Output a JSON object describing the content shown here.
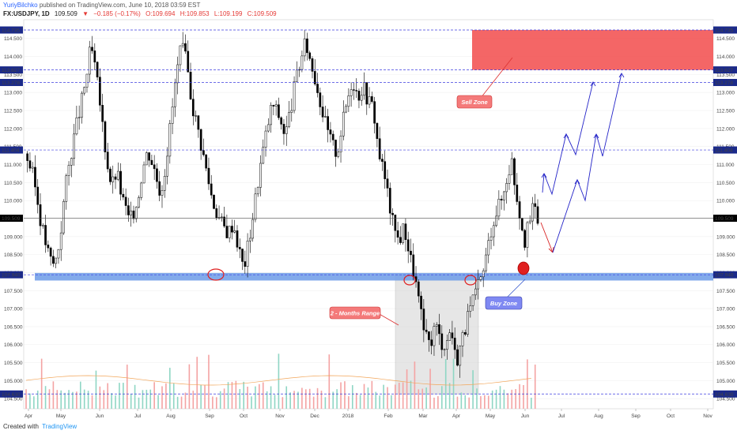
{
  "header": {
    "author": "YuriyBilchko",
    "published": "published on TradingView.com, June 10, 2018 03:59 EST",
    "symbol": "FX:USDJPY, 1D",
    "last": "109.509",
    "change_arrow": "▼",
    "change": "−0.185 (−0.17%)",
    "open": "O:109.694",
    "high": "H:109.853",
    "low": "L:109.199",
    "close": "C:109.509"
  },
  "footer": {
    "created_with": "Created with",
    "brand": "TradingView"
  },
  "colors": {
    "up": "#ffffff",
    "down": "#000000",
    "vol_up": "#8fd6c4",
    "vol_down": "#f4a3a3",
    "hline": "#3f3fe0",
    "sell_zone": "#f24b4b",
    "buy_zone": "#6c9be8",
    "range_box": "#cfcfcf",
    "proj_arrow": "#2424c8",
    "down_arrow": "#d82020",
    "circle": "#e02020",
    "axis_tag_bg": "#1b2a8a",
    "price_tag_bg": "#000000",
    "ma": "#f2a65a"
  },
  "chart_data": {
    "type": "candlestick",
    "symbol": "FX:USDJPY",
    "timeframe": "1D",
    "y_range": [
      104.3,
      115.0
    ],
    "x_tick_labels": [
      "Apr",
      "May",
      "Jun",
      "Jul",
      "Aug",
      "Sep",
      "Oct",
      "Nov",
      "Dec",
      "2018",
      "Feb",
      "Mar",
      "Apr",
      "May",
      "Jun",
      "Jul",
      "Aug",
      "Sep",
      "Oct",
      "Nov"
    ],
    "y_tick_labels": [
      "104.500",
      "105.000",
      "105.500",
      "106.000",
      "106.500",
      "107.000",
      "107.500",
      "108.000",
      "108.500",
      "109.000",
      "109.500",
      "110.000",
      "110.500",
      "111.000",
      "111.500",
      "112.000",
      "112.500",
      "113.000",
      "113.500",
      "114.000",
      "114.500"
    ],
    "y_ticks": [
      104.5,
      105,
      105.5,
      106,
      106.5,
      107,
      107.5,
      108,
      108.5,
      109,
      109.5,
      110,
      110.5,
      111,
      111.5,
      112,
      112.5,
      113,
      113.5,
      114,
      114.5
    ],
    "level_lines": [
      {
        "label": "114.735",
        "value": 114.735
      },
      {
        "label": "113.627",
        "value": 113.627
      },
      {
        "label": "113.278",
        "value": 113.278
      },
      {
        "label": "111.404",
        "value": 111.404
      },
      {
        "label": "107.940",
        "value": 107.94
      },
      {
        "label": "104.630",
        "value": 104.63
      }
    ],
    "current_price": {
      "label": "109.509",
      "value": 109.509
    },
    "price_path": [
      [
        0,
        111.3
      ],
      [
        6,
        110.6
      ],
      [
        12,
        109.3
      ],
      [
        18,
        108.4
      ],
      [
        22,
        108.2
      ],
      [
        26,
        108.9
      ],
      [
        30,
        110.3
      ],
      [
        36,
        111.6
      ],
      [
        42,
        112.6
      ],
      [
        46,
        113.3
      ],
      [
        50,
        114.3
      ],
      [
        54,
        113.5
      ],
      [
        58,
        112.4
      ],
      [
        62,
        111.2
      ],
      [
        66,
        110.4
      ],
      [
        70,
        110.8
      ],
      [
        74,
        110.1
      ],
      [
        80,
        109.4
      ],
      [
        86,
        110.0
      ],
      [
        90,
        110.9
      ],
      [
        94,
        111.4
      ],
      [
        98,
        111.0
      ],
      [
        104,
        110.2
      ],
      [
        108,
        111.1
      ],
      [
        112,
        112.3
      ],
      [
        116,
        113.5
      ],
      [
        120,
        114.3
      ],
      [
        124,
        113.8
      ],
      [
        128,
        112.7
      ],
      [
        132,
        112.1
      ],
      [
        136,
        111.4
      ],
      [
        140,
        110.7
      ],
      [
        144,
        110.0
      ],
      [
        148,
        109.6
      ],
      [
        152,
        109.3
      ],
      [
        156,
        109.1
      ],
      [
        160,
        109.4
      ],
      [
        164,
        108.7
      ],
      [
        168,
        108.1
      ],
      [
        172,
        108.9
      ],
      [
        176,
        109.8
      ],
      [
        180,
        110.8
      ],
      [
        186,
        112.0
      ],
      [
        190,
        112.7
      ],
      [
        196,
        112.3
      ],
      [
        200,
        111.8
      ],
      [
        204,
        112.5
      ],
      [
        208,
        113.3
      ],
      [
        212,
        113.9
      ],
      [
        216,
        114.4
      ],
      [
        220,
        113.8
      ],
      [
        224,
        113.3
      ],
      [
        228,
        112.6
      ],
      [
        232,
        112.0
      ],
      [
        236,
        111.6
      ],
      [
        240,
        111.3
      ],
      [
        244,
        112.1
      ],
      [
        248,
        112.8
      ],
      [
        252,
        113.4
      ],
      [
        256,
        112.9
      ],
      [
        260,
        113.2
      ],
      [
        264,
        112.8
      ],
      [
        268,
        112.6
      ],
      [
        272,
        111.4
      ],
      [
        276,
        110.8
      ],
      [
        280,
        110.0
      ],
      [
        284,
        109.2
      ],
      [
        288,
        108.9
      ],
      [
        292,
        109.3
      ],
      [
        296,
        108.5
      ],
      [
        300,
        107.9
      ],
      [
        304,
        107.0
      ],
      [
        308,
        106.2
      ],
      [
        312,
        106.0
      ],
      [
        316,
        106.6
      ],
      [
        320,
        106.1
      ],
      [
        324,
        106.0
      ],
      [
        328,
        106.5
      ],
      [
        332,
        105.5
      ],
      [
        336,
        106.1
      ],
      [
        340,
        106.6
      ],
      [
        344,
        107.1
      ],
      [
        348,
        107.5
      ],
      [
        352,
        107.9
      ],
      [
        356,
        108.6
      ],
      [
        360,
        109.4
      ],
      [
        364,
        109.8
      ],
      [
        368,
        110.1
      ],
      [
        372,
        110.8
      ],
      [
        375,
        111.1
      ],
      [
        378,
        110.3
      ],
      [
        382,
        109.5
      ],
      [
        385,
        108.9
      ],
      [
        388,
        109.3
      ],
      [
        392,
        109.9
      ],
      [
        395,
        109.509
      ]
    ],
    "volume_note": "volume histogram at bottom",
    "annotations": {
      "sell_zone": {
        "text": "Sell Zone",
        "from": 113.627,
        "to": 114.735
      },
      "buy_zone": {
        "text": "Buy Zone",
        "level": 107.94
      },
      "range": {
        "text": "2 - Months Range",
        "from": 104.63,
        "to": 107.94
      }
    },
    "projection_path": [
      [
        395,
        109.509
      ],
      [
        405,
        108.45
      ],
      [
        414,
        110.0
      ],
      [
        423,
        111.1
      ],
      [
        432,
        110.8
      ],
      [
        442,
        113.0
      ],
      [
        450,
        112.2
      ],
      [
        460,
        113.6
      ]
    ]
  }
}
